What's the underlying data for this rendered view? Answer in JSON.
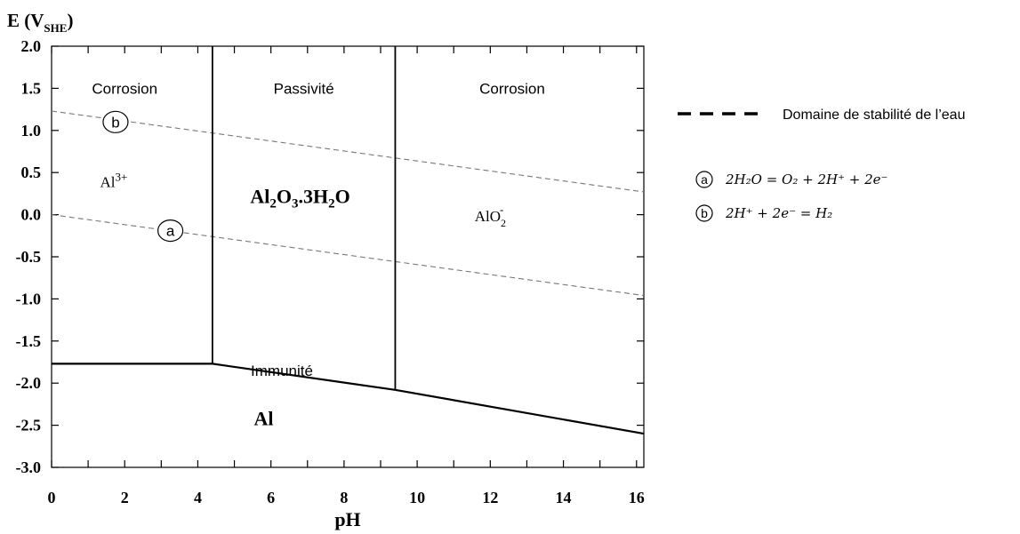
{
  "chart_data": {
    "type": "line",
    "title": "",
    "ylabel": "E (V_SHE)",
    "ylabel_main": "E (V",
    "ylabel_sub": "SHE",
    "ylabel_close": ")",
    "xlabel": "pH",
    "xlim": [
      0,
      16.2
    ],
    "ylim": [
      -3.0,
      2.0
    ],
    "x_ticks": [
      0,
      2,
      4,
      6,
      8,
      10,
      12,
      14,
      16
    ],
    "x_tick_labels": [
      "0",
      "2",
      "4",
      "6",
      "8",
      "10",
      "12",
      "14",
      "16"
    ],
    "y_ticks": [
      2.0,
      1.5,
      1.0,
      0.5,
      0.0,
      -0.5,
      -1.0,
      -1.5,
      -2.0,
      -2.5,
      -3.0
    ],
    "y_tick_labels": [
      "2.0",
      "1.5",
      "1.0",
      "0.5",
      "0.0",
      "-0.5",
      "-1.0",
      "-1.5",
      "-2.0",
      "-2.5",
      "-3.0"
    ],
    "grid": false,
    "boundaries": [
      {
        "name": "Al3+/Al2O3 boundary",
        "style": "solid",
        "points": [
          [
            4.4,
            2.0
          ],
          [
            4.4,
            -1.77
          ]
        ]
      },
      {
        "name": "Al2O3/AlO2- boundary",
        "style": "solid",
        "points": [
          [
            9.4,
            2.0
          ],
          [
            9.4,
            -2.08
          ]
        ]
      },
      {
        "name": "Al3+/Al",
        "style": "solid",
        "points": [
          [
            0,
            -1.77
          ],
          [
            4.4,
            -1.77
          ]
        ]
      },
      {
        "name": "Al2O3/Al",
        "style": "solid",
        "points": [
          [
            4.4,
            -1.77
          ],
          [
            9.4,
            -2.08
          ]
        ]
      },
      {
        "name": "AlO2-/Al",
        "style": "solid",
        "points": [
          [
            9.4,
            -2.08
          ],
          [
            16.2,
            -2.6
          ]
        ]
      }
    ],
    "water_lines": [
      {
        "id": "a",
        "style": "dashed",
        "points": [
          [
            0,
            0.0
          ],
          [
            16.2,
            -0.96
          ]
        ]
      },
      {
        "id": "b",
        "style": "dashed",
        "points": [
          [
            0,
            1.23
          ],
          [
            16.2,
            0.27
          ]
        ]
      }
    ],
    "region_labels": [
      {
        "text": "Corrosion",
        "x": 2.0,
        "y": 1.5
      },
      {
        "text": "Passivité",
        "x": 6.9,
        "y": 1.5
      },
      {
        "text": "Corrosion",
        "x": 12.6,
        "y": 1.5
      },
      {
        "text": "Immunité",
        "x": 6.3,
        "y": -1.85
      }
    ],
    "species_labels": {
      "al3": {
        "base": "Al",
        "sup": "3+",
        "x": 1.7,
        "y": 0.33
      },
      "oxide": {
        "parts": [
          "Al",
          "2",
          "O",
          "3",
          ".3H",
          "2",
          "O"
        ],
        "x": 6.8,
        "y": 0.14
      },
      "aluminate": {
        "base": "AlO",
        "sub": "2",
        "sup": "-",
        "x": 12.0,
        "y": -0.08
      },
      "metal": {
        "text": "Al",
        "x": 5.8,
        "y": -2.5
      }
    },
    "line_markers": [
      {
        "text": "b",
        "x": 1.75,
        "y": 1.1
      },
      {
        "text": "a",
        "x": 3.25,
        "y": -0.19
      }
    ]
  },
  "legend": {
    "water_label": "Domaine de stabilité de l’eau",
    "eq_a_marker": "a",
    "eq_a": "2H₂O = O₂ + 2H⁺ + 2e⁻",
    "eq_b_marker": "b",
    "eq_b": "2H⁺ + 2e⁻ = H₂"
  }
}
